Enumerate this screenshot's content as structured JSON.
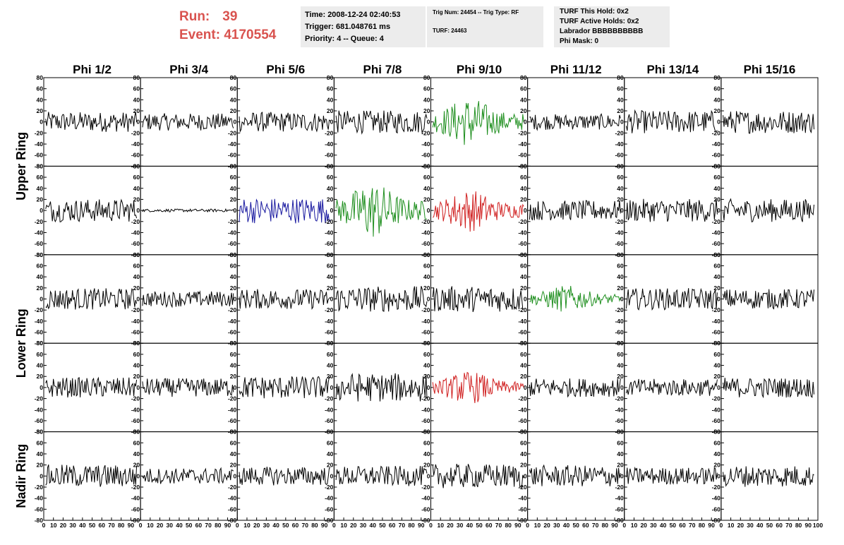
{
  "header": {
    "run_label": "Run:",
    "run_value": "39",
    "event_label": "Event:",
    "event_value": "4170554"
  },
  "info_box_1": {
    "time": "Time: 2008-12-24 02:40:53",
    "trigger": "Trigger: 681.048761 ms",
    "priority": "Priority: 4 -- Queue: 4"
  },
  "info_box_2": {
    "trig": "Trig Num: 24454 -- Trig Type: RF",
    "turf": "TURF: 24463"
  },
  "info_box_3": {
    "hold": "TURF This Hold: 0x2",
    "active": "TURF Active Holds: 0x2",
    "labrador": "Labrador BBBBBBBBBB",
    "phimask": "Phi Mask: 0"
  },
  "chart_data": {
    "type": "line",
    "columns": [
      "Phi 1/2",
      "Phi 3/4",
      "Phi 5/6",
      "Phi 7/8",
      "Phi 9/10",
      "Phi 11/12",
      "Phi 13/14",
      "Phi 15/16"
    ],
    "ring_labels": [
      "Upper Ring",
      "Lower Ring",
      "Nadir Ring"
    ],
    "rows": 5,
    "ylim": [
      -80,
      80
    ],
    "xlim": [
      0,
      100
    ],
    "y_ticks": [
      -80,
      -60,
      -40,
      -20,
      0,
      20,
      40,
      60,
      80
    ],
    "x_ticks": [
      0,
      10,
      20,
      30,
      40,
      50,
      60,
      70,
      80,
      90,
      100
    ],
    "sample_count": 96,
    "colors": {
      "default": "#000000",
      "green": "#1f8f1f",
      "blue": "#1a1aa0",
      "red": "#d02020"
    },
    "panels": [
      [
        {
          "amp": 14,
          "color": "default"
        },
        {
          "amp": 12,
          "color": "default"
        },
        {
          "amp": 14,
          "color": "default"
        },
        {
          "amp": 16,
          "color": "default"
        },
        {
          "amp": 26,
          "color": "green",
          "env": true
        },
        {
          "amp": 11,
          "color": "default"
        },
        {
          "amp": 16,
          "color": "default"
        },
        {
          "amp": 16,
          "color": "default"
        }
      ],
      [
        {
          "amp": 16,
          "color": "default"
        },
        {
          "amp": 2,
          "color": "default"
        },
        {
          "amp": 18,
          "color": "blue"
        },
        {
          "amp": 30,
          "color": "green",
          "env": true
        },
        {
          "amp": 22,
          "color": "red",
          "env": true
        },
        {
          "amp": 14,
          "color": "default"
        },
        {
          "amp": 16,
          "color": "default"
        },
        {
          "amp": 16,
          "color": "default"
        }
      ],
      [
        {
          "amp": 15,
          "color": "default"
        },
        {
          "amp": 11,
          "color": "default"
        },
        {
          "amp": 14,
          "color": "default"
        },
        {
          "amp": 18,
          "color": "default"
        },
        {
          "amp": 18,
          "color": "default"
        },
        {
          "amp": 14,
          "color": "green",
          "env": true
        },
        {
          "amp": 15,
          "color": "default"
        },
        {
          "amp": 14,
          "color": "default"
        }
      ],
      [
        {
          "amp": 14,
          "color": "default"
        },
        {
          "amp": 13,
          "color": "default"
        },
        {
          "amp": 16,
          "color": "default"
        },
        {
          "amp": 20,
          "color": "default"
        },
        {
          "amp": 17,
          "color": "red",
          "env": true
        },
        {
          "amp": 13,
          "color": "default"
        },
        {
          "amp": 12,
          "color": "default"
        },
        {
          "amp": 14,
          "color": "default"
        }
      ],
      [
        {
          "amp": 16,
          "color": "default"
        },
        {
          "amp": 11,
          "color": "default"
        },
        {
          "amp": 13,
          "color": "default"
        },
        {
          "amp": 14,
          "color": "default"
        },
        {
          "amp": 17,
          "color": "default"
        },
        {
          "amp": 15,
          "color": "default"
        },
        {
          "amp": 12,
          "color": "default"
        },
        {
          "amp": 15,
          "color": "default"
        }
      ]
    ]
  }
}
